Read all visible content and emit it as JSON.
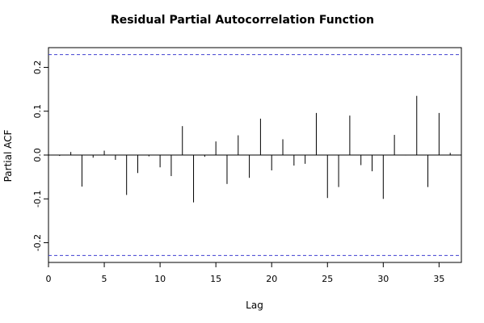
{
  "chart_data": {
    "type": "bar",
    "title": "Residual Partial Autocorrelation Function",
    "xlabel": "Lag",
    "ylabel": "Partial ACF",
    "xlim": [
      0,
      37
    ],
    "ylim": [
      -0.245,
      0.245
    ],
    "x_ticks": [
      0,
      5,
      10,
      15,
      20,
      25,
      30,
      35
    ],
    "y_ticks": [
      -0.2,
      -0.1,
      0.0,
      0.1,
      0.2
    ],
    "y_tick_labels": [
      "-0.2",
      "-0.1",
      "0.0",
      "0.1",
      "0.2"
    ],
    "confidence_bounds": [
      0.229,
      -0.229
    ],
    "bound_color": "#4040d0",
    "series": [
      {
        "lags": [
          1,
          2,
          3,
          4,
          5,
          6,
          7,
          8,
          9,
          10,
          11,
          12,
          13,
          14,
          15,
          16,
          17,
          18,
          19,
          20,
          21,
          22,
          23,
          24,
          25,
          26,
          27,
          28,
          29,
          30,
          31,
          32,
          33,
          34,
          35,
          36
        ],
        "values": [
          -0.002,
          0.007,
          -0.072,
          -0.006,
          0.01,
          -0.011,
          -0.091,
          -0.041,
          -0.003,
          -0.028,
          -0.048,
          0.066,
          -0.108,
          -0.004,
          0.031,
          -0.066,
          0.045,
          -0.052,
          0.083,
          -0.035,
          0.036,
          -0.024,
          -0.02,
          0.096,
          -0.098,
          -0.073,
          0.09,
          -0.023,
          -0.037,
          -0.1,
          0.046,
          -0.001,
          0.135,
          -0.073,
          0.096,
          0.005
        ]
      }
    ],
    "grid": false,
    "legend": "none"
  }
}
